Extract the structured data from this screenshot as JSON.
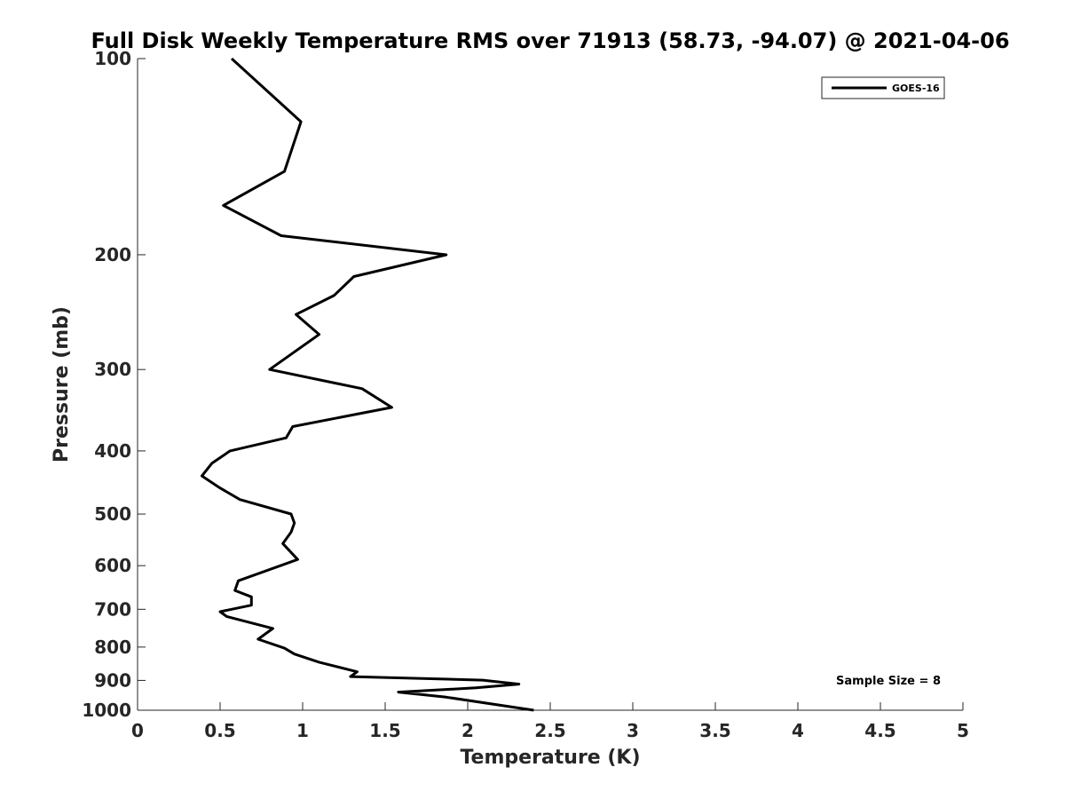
{
  "chart_data": {
    "type": "line",
    "title": "Full Disk Weekly Temperature RMS over 71913 (58.73, -94.07) @ 2021-04-06",
    "xlabel": "Temperature (K)",
    "ylabel": "Pressure (mb)",
    "xlim": [
      0,
      5
    ],
    "ylim": [
      100,
      1000
    ],
    "yscale": "log",
    "y_reversed": true,
    "xticks": [
      0,
      0.5,
      1,
      1.5,
      2,
      2.5,
      3,
      3.5,
      4,
      4.5,
      5
    ],
    "xtick_labels": [
      "0",
      "0.5",
      "1",
      "1.5",
      "2",
      "2.5",
      "3",
      "3.5",
      "4",
      "4.5",
      "5"
    ],
    "yticks": [
      100,
      200,
      300,
      400,
      500,
      600,
      700,
      800,
      900,
      1000
    ],
    "ytick_labels": [
      "100",
      "200",
      "300",
      "400",
      "500",
      "600",
      "700",
      "800",
      "900",
      "1000"
    ],
    "grid": false,
    "legend_position": "top-right",
    "series": [
      {
        "name": "GOES-16",
        "color": "#000000",
        "points": [
          [
            0.57,
            100
          ],
          [
            0.99,
            125
          ],
          [
            0.89,
            149
          ],
          [
            0.52,
            168
          ],
          [
            0.87,
            187
          ],
          [
            1.87,
            200
          ],
          [
            1.31,
            216
          ],
          [
            1.19,
            231
          ],
          [
            0.96,
            247
          ],
          [
            1.1,
            265
          ],
          [
            0.8,
            300
          ],
          [
            1.36,
            321
          ],
          [
            1.54,
            343
          ],
          [
            0.94,
            367
          ],
          [
            0.9,
            382
          ],
          [
            0.56,
            400
          ],
          [
            0.45,
            418
          ],
          [
            0.39,
            437
          ],
          [
            0.5,
            456
          ],
          [
            0.62,
            475
          ],
          [
            0.93,
            500
          ],
          [
            0.95,
            516
          ],
          [
            0.93,
            533
          ],
          [
            0.88,
            555
          ],
          [
            0.97,
            587
          ],
          [
            0.61,
            633
          ],
          [
            0.59,
            655
          ],
          [
            0.69,
            670
          ],
          [
            0.69,
            690
          ],
          [
            0.5,
            706
          ],
          [
            0.54,
            718
          ],
          [
            0.82,
            749
          ],
          [
            0.73,
            778
          ],
          [
            0.89,
            803
          ],
          [
            0.95,
            820
          ],
          [
            1.1,
            844
          ],
          [
            1.33,
            873
          ],
          [
            1.29,
            888
          ],
          [
            2.09,
            899
          ],
          [
            2.31,
            912
          ],
          [
            2.05,
            924
          ],
          [
            1.58,
            938
          ],
          [
            1.87,
            955
          ],
          [
            2.4,
            1000
          ]
        ]
      }
    ],
    "annotation": "Sample Size = 8"
  }
}
